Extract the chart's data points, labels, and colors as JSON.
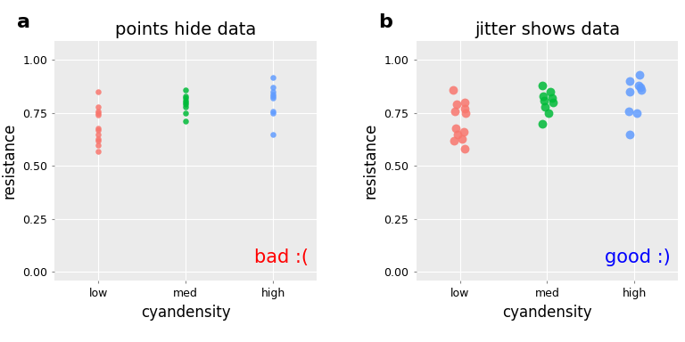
{
  "panel_a_title": "points hide data",
  "panel_b_title": "jitter shows data",
  "label_a": "a",
  "label_b": "b",
  "xlabel": "cyandensity",
  "ylabel": "resistance",
  "categories": [
    "low",
    "med",
    "high"
  ],
  "ylim": [
    -0.04,
    1.09
  ],
  "yticks": [
    0.0,
    0.25,
    0.5,
    0.75,
    1.0
  ],
  "ytick_labels": [
    "0.00",
    "0.25",
    "0.50",
    "0.75",
    "1.00"
  ],
  "colors": {
    "low": "#F8766D",
    "med": "#00BA38",
    "high": "#619CFF"
  },
  "bg_color": "#EBEBEB",
  "grid_color": "#FFFFFF",
  "annotation_a": "bad :(",
  "annotation_a_color": "#FF0000",
  "annotation_b": "good :)",
  "annotation_b_color": "#0000FF",
  "dot_size_a": 22,
  "dot_size_b": 50,
  "panel_a_data": {
    "low": [
      0.85,
      0.78,
      0.76,
      0.75,
      0.74,
      0.68,
      0.67,
      0.65,
      0.63,
      0.62,
      0.6,
      0.57
    ],
    "med": [
      0.86,
      0.83,
      0.82,
      0.81,
      0.8,
      0.79,
      0.78,
      0.75,
      0.71
    ],
    "high": [
      0.92,
      0.87,
      0.85,
      0.84,
      0.83,
      0.82,
      0.76,
      0.75,
      0.65
    ]
  },
  "panel_b_data": {
    "low": [
      0.86,
      0.8,
      0.79,
      0.77,
      0.76,
      0.75,
      0.68,
      0.66,
      0.65,
      0.63,
      0.62,
      0.58
    ],
    "med": [
      0.88,
      0.85,
      0.83,
      0.82,
      0.81,
      0.8,
      0.78,
      0.75,
      0.7
    ],
    "high": [
      0.93,
      0.9,
      0.88,
      0.87,
      0.86,
      0.85,
      0.76,
      0.75,
      0.65
    ]
  },
  "jitter_a": {
    "low": [
      0,
      0,
      0,
      0,
      0,
      0,
      0,
      0,
      0,
      0,
      0,
      0
    ],
    "med": [
      0,
      0,
      0,
      0,
      0,
      0,
      0,
      0,
      0
    ],
    "high": [
      0,
      0,
      0,
      0,
      0,
      0,
      0,
      0,
      0
    ]
  },
  "jitter_b": {
    "low": [
      -0.08,
      0.05,
      -0.04,
      0.06,
      -0.06,
      0.07,
      -0.05,
      0.04,
      -0.03,
      0.02,
      -0.07,
      0.05
    ],
    "med": [
      -0.06,
      0.04,
      -0.05,
      0.06,
      -0.04,
      0.07,
      -0.03,
      0.02,
      -0.06
    ],
    "high": [
      0.06,
      -0.06,
      0.05,
      0.07,
      0.08,
      -0.05,
      -0.07,
      0.03,
      -0.06
    ]
  },
  "title_fontsize": 14,
  "axis_label_fontsize": 12,
  "tick_fontsize": 9,
  "annotation_fontsize": 15,
  "label_fontsize": 16
}
